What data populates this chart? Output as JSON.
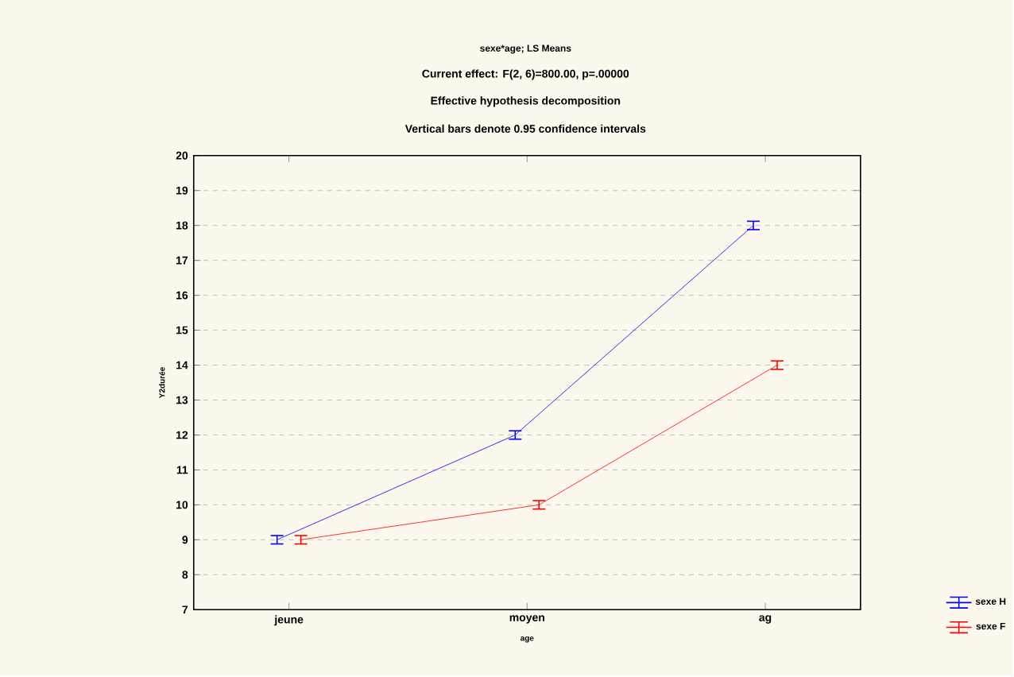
{
  "chart_data": {
    "type": "line",
    "title": "sexe*age; LS Means",
    "subtitle": "Current effect: F(2, 6)=800.00, p=.00000",
    "annotations": [
      "Effective hypothesis decomposition",
      "Vertical bars denote 0.95 confidence intervals"
    ],
    "xlabel": "age",
    "ylabel": "Y2durée",
    "categories": [
      "jeune",
      "moyen",
      "ag"
    ],
    "series": [
      {
        "name": "sexe H",
        "color": "#0000ff",
        "values": [
          9,
          12,
          18
        ],
        "errors": [
          0.12,
          0.12,
          0.12
        ]
      },
      {
        "name": "sexe F",
        "color": "#ff0000",
        "values": [
          9,
          10,
          14
        ],
        "errors": [
          0.12,
          0.12,
          0.12
        ]
      }
    ],
    "ylim": [
      7,
      20
    ],
    "yticks": [
      7,
      8,
      9,
      10,
      11,
      12,
      13,
      14,
      15,
      16,
      17,
      18,
      19,
      20
    ],
    "grid": "y",
    "legend": "bottom right",
    "marker": "none",
    "line_style": "solid"
  }
}
